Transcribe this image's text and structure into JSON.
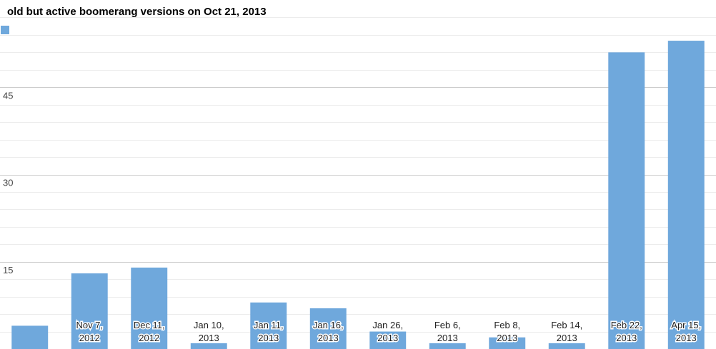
{
  "chart_data": {
    "type": "bar",
    "title": "old but active boomerang versions on Oct 21, 2013",
    "xlabel": "",
    "ylabel": "",
    "categories": [
      [
        "",
        ""
      ],
      [
        "Nov 7,",
        "2012"
      ],
      [
        "Dec 11,",
        "2012"
      ],
      [
        "Jan 10,",
        "2013"
      ],
      [
        "Jan 11,",
        "2013"
      ],
      [
        "Jan 16,",
        "2013"
      ],
      [
        "Jan 26,",
        "2013"
      ],
      [
        "Feb 6,",
        "2013"
      ],
      [
        "Feb 8,",
        "2013"
      ],
      [
        "Feb 14,",
        "2013"
      ],
      [
        "Feb 22,",
        "2013"
      ],
      [
        "Apr 15,",
        "2013"
      ]
    ],
    "values": [
      4,
      13,
      14,
      1,
      8,
      7,
      3,
      1,
      2,
      1,
      51,
      53
    ],
    "ylim": [
      0,
      57
    ],
    "yticks": [
      15,
      30,
      45
    ],
    "grid": true,
    "legend": "top-left",
    "colors": {
      "bar": "#6fa8dc",
      "major_grid": "#cccccc",
      "minor_grid": "#ececec"
    }
  }
}
